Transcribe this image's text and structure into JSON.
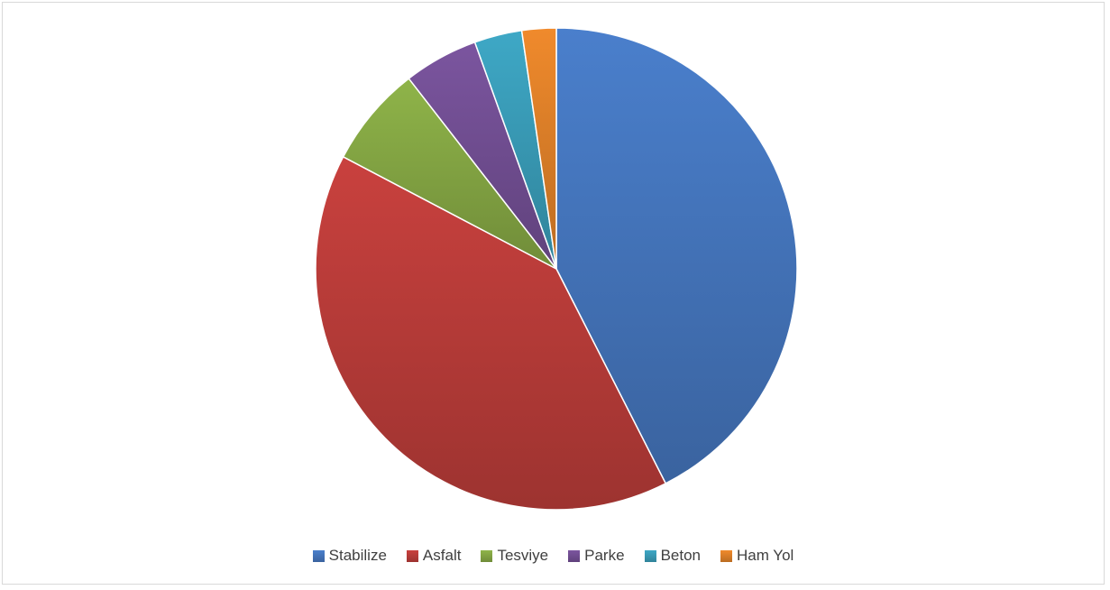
{
  "chart_data": {
    "type": "pie",
    "title": "",
    "legend_position": "bottom",
    "categories": [
      "Stabilize",
      "Asfalt",
      "Tesviye",
      "Parke",
      "Beton",
      "Ham Yol"
    ],
    "values": [
      42.5,
      40.2,
      6.8,
      5.0,
      3.2,
      2.3
    ],
    "colors": [
      "#4a7fcc",
      "#c9413e",
      "#8fb449",
      "#7b559f",
      "#3ea8c6",
      "#f08a2c"
    ]
  }
}
